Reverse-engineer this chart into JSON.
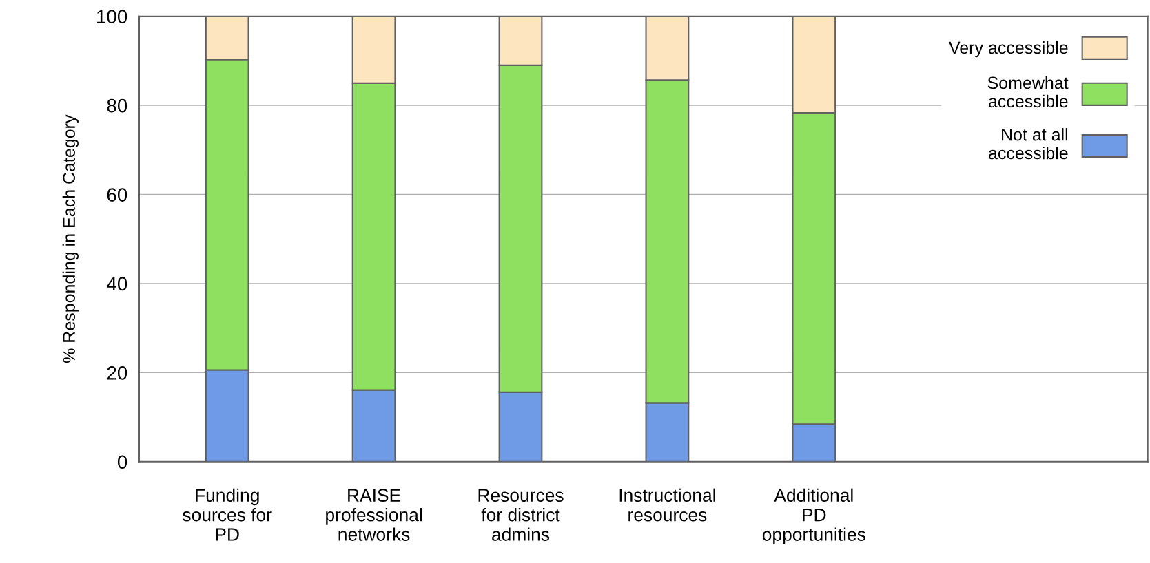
{
  "chart_data": {
    "type": "bar",
    "stacked": true,
    "ylabel": "% Responding in Each Category",
    "categories": [
      "Funding\nsources for\nPD",
      "RAISE\nprofessional\nnetworks",
      "Resources\nfor district\nadmins",
      "Instructional\nresources",
      "Additional\nPD\nopportunities"
    ],
    "series": [
      {
        "name": "Not at all\naccessible",
        "color": "#6f9be6",
        "values": [
          20.6,
          16.1,
          15.6,
          13.2,
          8.4
        ]
      },
      {
        "name": "Somewhat\naccessible",
        "color": "#8fe060",
        "values": [
          69.7,
          68.9,
          73.4,
          72.5,
          69.9
        ]
      },
      {
        "name": "Very accessible",
        "color": "#fde5c0",
        "values": [
          9.7,
          15.0,
          11.0,
          14.3,
          21.7
        ]
      }
    ],
    "ylim": [
      0,
      100
    ],
    "yticks": [
      0,
      20,
      40,
      60,
      80,
      100
    ],
    "grid": "y",
    "legend": "top right"
  }
}
